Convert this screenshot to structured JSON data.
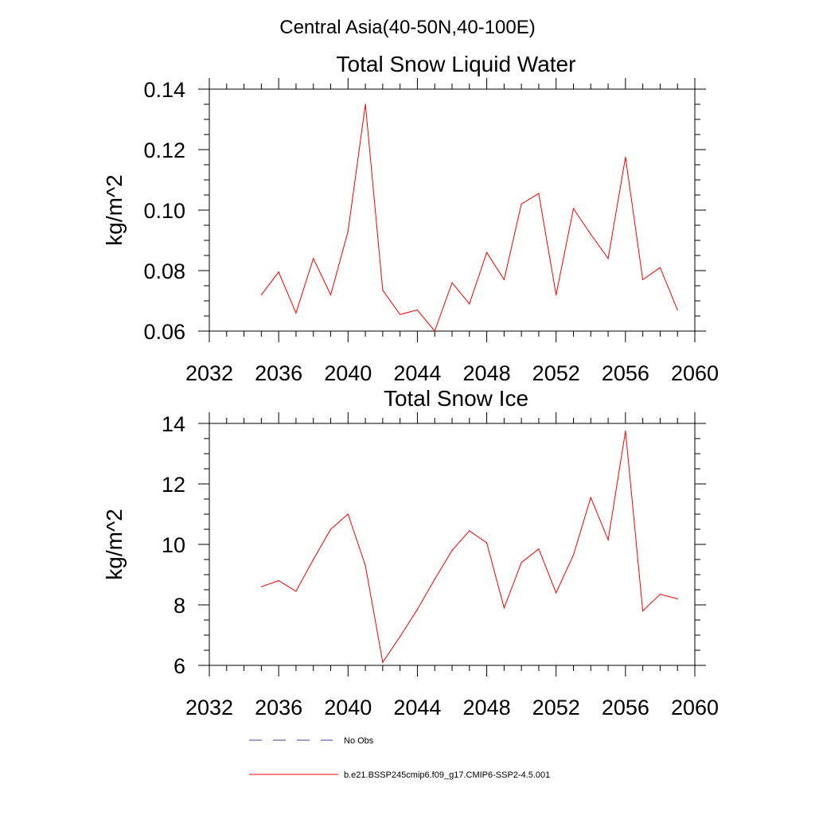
{
  "figure": {
    "title": "Central Asia(40-50N,40-100E)"
  },
  "legend": [
    {
      "label": "No Obs",
      "color": "#3f3f9f",
      "style": "dashed"
    },
    {
      "label": "b.e21.BSSP245cmip6.f09_g17.CMIP6-SSP2-4.5.001",
      "color": "#ff0000",
      "style": "solid"
    }
  ],
  "chart_data": [
    {
      "type": "line",
      "title": "Total Snow Liquid Water",
      "xlabel": "",
      "ylabel": "kg/m^2",
      "xlim": [
        2032,
        2060
      ],
      "ylim": [
        0.06,
        0.14
      ],
      "xticks": [
        "2032",
        "2036",
        "2040",
        "2044",
        "2048",
        "2052",
        "2056",
        "2060"
      ],
      "yticks": [
        "0.06",
        "0.08",
        "0.10",
        "0.12",
        "0.14"
      ],
      "grid": false,
      "series": [
        {
          "name": "b.e21.BSSP245cmip6.f09_g17.CMIP6-SSP2-4.5.001",
          "color": "#ff0000",
          "x": [
            2035,
            2036,
            2037,
            2038,
            2039,
            2040,
            2041,
            2042,
            2043,
            2044,
            2045,
            2046,
            2047,
            2048,
            2049,
            2050,
            2051,
            2052,
            2053,
            2054,
            2055,
            2056,
            2057,
            2058,
            2059
          ],
          "y": [
            0.072,
            0.0795,
            0.066,
            0.084,
            0.072,
            0.093,
            0.135,
            0.0735,
            0.0655,
            0.067,
            0.06,
            0.076,
            0.069,
            0.086,
            0.077,
            0.102,
            0.1055,
            0.072,
            0.1005,
            0.092,
            0.084,
            0.1175,
            0.077,
            0.081,
            0.067
          ]
        }
      ]
    },
    {
      "type": "line",
      "title": "Total Snow Ice",
      "xlabel": "",
      "ylabel": "kg/m^2",
      "xlim": [
        2032,
        2060
      ],
      "ylim": [
        6,
        14
      ],
      "xticks": [
        "2032",
        "2036",
        "2040",
        "2044",
        "2048",
        "2052",
        "2056",
        "2060"
      ],
      "yticks": [
        "6",
        "8",
        "10",
        "12",
        "14"
      ],
      "grid": false,
      "series": [
        {
          "name": "b.e21.BSSP245cmip6.f09_g17.CMIP6-SSP2-4.5.001",
          "color": "#ff0000",
          "x": [
            2035,
            2036,
            2037,
            2038,
            2039,
            2040,
            2041,
            2042,
            2043,
            2044,
            2045,
            2046,
            2047,
            2048,
            2049,
            2050,
            2051,
            2052,
            2053,
            2054,
            2055,
            2056,
            2057,
            2058,
            2059
          ],
          "y": [
            8.6,
            8.8,
            8.45,
            9.5,
            10.5,
            11.0,
            9.3,
            6.1,
            6.95,
            7.85,
            8.85,
            9.8,
            10.45,
            10.05,
            7.9,
            9.4,
            9.85,
            8.4,
            9.65,
            11.55,
            10.15,
            13.75,
            7.8,
            8.35,
            8.2
          ]
        }
      ]
    }
  ]
}
